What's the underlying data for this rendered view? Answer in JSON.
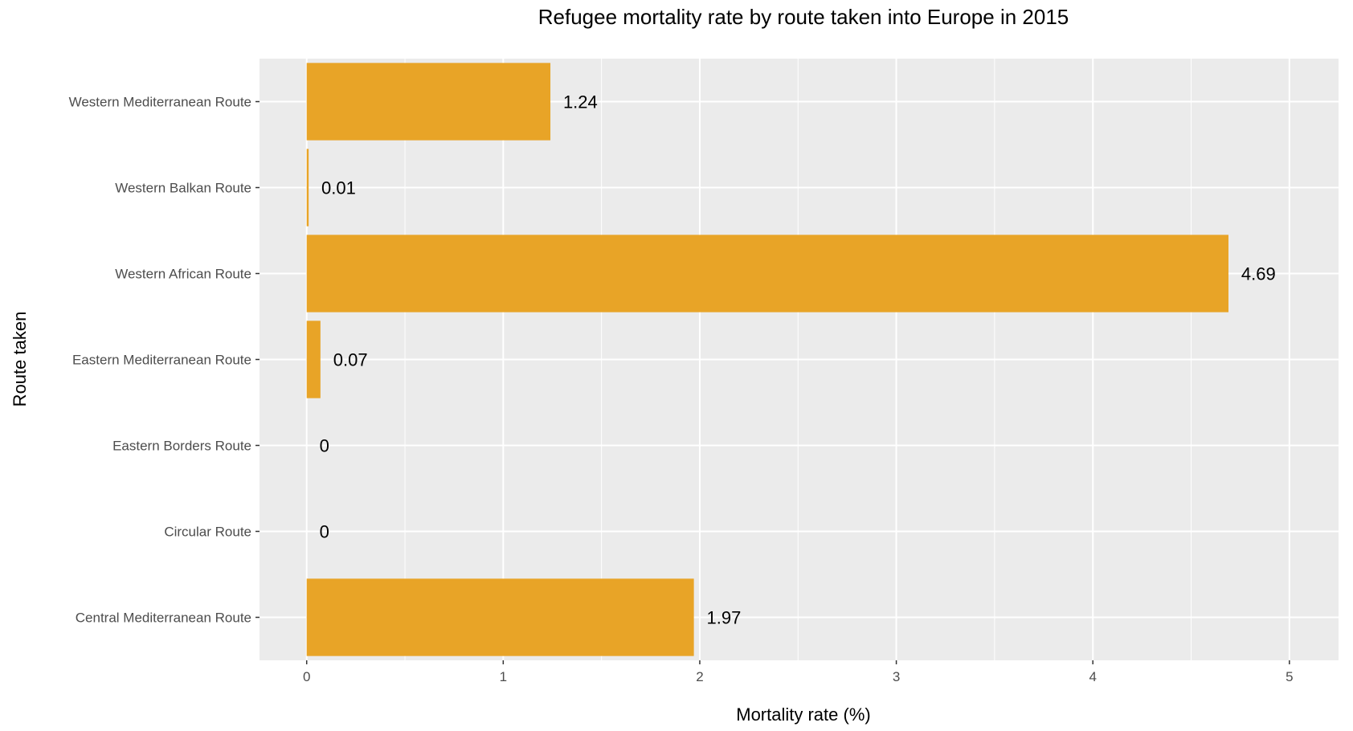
{
  "chart_data": {
    "type": "bar",
    "orientation": "horizontal",
    "title": "Refugee mortality rate by route taken into Europe in 2015",
    "xlabel": "Mortality rate (%)",
    "ylabel": "Route taken",
    "categories": [
      "Central Mediterranean Route",
      "Circular Route",
      "Eastern Borders Route",
      "Eastern Mediterranean Route",
      "Western African Route",
      "Western Balkan Route",
      "Western Mediterranean Route"
    ],
    "values": [
      1.97,
      0,
      0,
      0.07,
      4.69,
      0.01,
      1.24
    ],
    "value_labels": [
      "1.97",
      "0",
      "0",
      "0.07",
      "4.69",
      "0.01",
      "1.24"
    ],
    "xlim": [
      0,
      5
    ],
    "xticks": [
      0,
      1,
      2,
      3,
      4,
      5
    ],
    "xtick_labels": [
      "0",
      "1",
      "2",
      "3",
      "4",
      "5"
    ],
    "grid": true,
    "legend": "none",
    "colors": {
      "bar": "#E8A427",
      "panel": "#EBEBEB",
      "grid": "#FFFFFF"
    }
  }
}
